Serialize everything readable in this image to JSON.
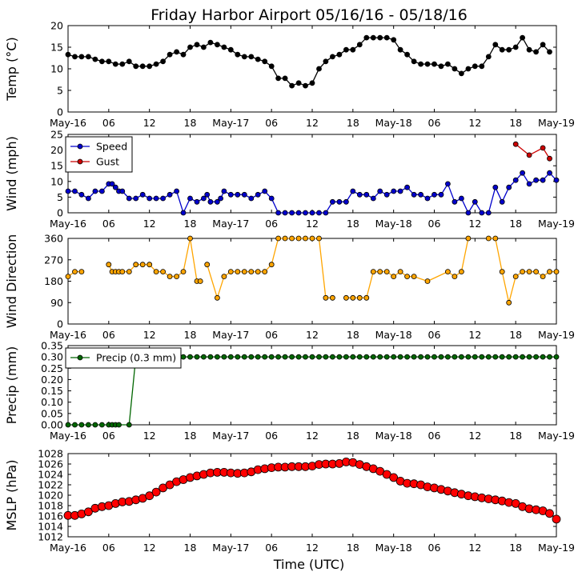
{
  "title": "Friday Harbor Airport 05/16/16 - 05/18/16",
  "x_axis_label": "Time (UTC)",
  "chart_data": {
    "type": "line",
    "x_unit": "hours since 2016-05-16 00:00 UTC",
    "x_range": [
      0,
      72
    ],
    "x_ticks": [
      0,
      6,
      12,
      18,
      24,
      30,
      36,
      42,
      48,
      54,
      60,
      66,
      72
    ],
    "x_tick_labels": [
      "May-16",
      "06",
      "12",
      "18",
      "May-17",
      "06",
      "12",
      "18",
      "May-18",
      "06",
      "12",
      "18",
      "May-19"
    ],
    "panels": [
      {
        "name": "temperature",
        "ylabel": "Temp (°C)",
        "ylim": [
          0,
          20
        ],
        "yticks": [
          0,
          5,
          10,
          15,
          20
        ],
        "legend": null,
        "series": [
          {
            "name": "Temp",
            "color": "#000000",
            "marker": "circle",
            "line": true,
            "x": [
              0,
              1,
              2,
              3,
              4,
              5,
              6,
              7,
              8,
              9,
              10,
              11,
              12,
              13,
              14,
              15,
              16,
              17,
              18,
              19,
              20,
              21,
              22,
              23,
              24,
              25,
              26,
              27,
              28,
              29,
              30,
              31,
              32,
              33,
              34,
              35,
              36,
              37,
              38,
              39,
              40,
              41,
              42,
              43,
              44,
              45,
              46,
              47,
              48,
              49,
              50,
              51,
              52,
              53,
              54,
              55,
              56,
              57,
              58,
              59,
              60,
              61,
              62,
              63,
              64,
              65,
              66,
              67,
              68,
              69,
              70,
              71,
              72
            ],
            "y": [
              13.3,
              12.8,
              12.8,
              12.8,
              12.2,
              11.7,
              11.7,
              11.1,
              11.1,
              11.7,
              10.6,
              10.6,
              10.6,
              11.1,
              11.7,
              13.3,
              13.9,
              13.3,
              15.0,
              15.6,
              15.0,
              16.1,
              15.6,
              15.0,
              14.4,
              13.3,
              12.8,
              12.8,
              12.2,
              11.7,
              10.6,
              7.8,
              7.8,
              6.1,
              6.7,
              6.1,
              6.7,
              10.0,
              11.7,
              12.8,
              13.3,
              14.4,
              14.4,
              15.6,
              17.2,
              17.2,
              17.2,
              17.2,
              16.7,
              14.4,
              13.3,
              11.7,
              11.1,
              11.1,
              11.1,
              10.6,
              11.1,
              10.0,
              8.9,
              10.0,
              10.6,
              10.6,
              12.8,
              15.6,
              14.4,
              14.4,
              15.0,
              17.2,
              14.4,
              13.9,
              15.6,
              13.9,
              null
            ]
          }
        ]
      },
      {
        "name": "wind",
        "ylabel": "Wind (mph)",
        "ylim": [
          0,
          25
        ],
        "yticks": [
          0,
          5,
          10,
          15,
          20,
          25
        ],
        "legend": "top-left",
        "series": [
          {
            "name": "Speed",
            "color": "#0000cc",
            "marker": "circle",
            "line": true,
            "x": [
              0,
              1,
              2,
              3,
              4,
              5,
              6,
              6.5,
              7,
              7.5,
              8,
              9,
              10,
              11,
              12,
              13,
              14,
              15,
              16,
              17,
              18,
              19,
              20,
              20.5,
              21,
              22,
              22.5,
              23,
              24,
              25,
              26,
              27,
              28,
              29,
              30,
              31,
              32,
              33,
              34,
              35,
              36,
              37,
              38,
              39,
              40,
              41,
              42,
              43,
              44,
              45,
              46,
              47,
              48,
              49,
              50,
              51,
              52,
              53,
              54,
              55,
              56,
              57,
              58,
              59,
              60,
              61,
              62,
              63,
              64,
              65,
              66,
              67,
              68,
              69,
              70,
              71,
              72
            ],
            "y": [
              6.9,
              6.9,
              5.8,
              4.6,
              6.9,
              6.9,
              9.2,
              9.2,
              8.1,
              6.9,
              6.9,
              4.6,
              4.6,
              5.8,
              4.6,
              4.6,
              4.6,
              5.8,
              6.9,
              0.0,
              4.6,
              3.5,
              4.6,
              5.8,
              3.5,
              3.5,
              4.6,
              6.9,
              5.8,
              5.8,
              5.8,
              4.6,
              5.8,
              6.9,
              4.6,
              0.0,
              0.0,
              0.0,
              0.0,
              0.0,
              0.0,
              0.0,
              0.0,
              3.5,
              3.5,
              3.5,
              6.9,
              5.8,
              5.8,
              4.6,
              6.9,
              5.8,
              6.9,
              6.9,
              8.1,
              5.8,
              5.8,
              4.6,
              5.8,
              5.8,
              9.2,
              3.5,
              4.6,
              0.0,
              3.5,
              0.0,
              0.0,
              8.1,
              3.5,
              8.1,
              10.4,
              12.7,
              9.2,
              10.4,
              10.4,
              12.7,
              10.4
            ]
          },
          {
            "name": "Gust",
            "color": "#cc0000",
            "marker": "circle",
            "line": true,
            "x": [
              66,
              68,
              70,
              71
            ],
            "y": [
              21.9,
              18.4,
              20.7,
              17.3
            ]
          }
        ]
      },
      {
        "name": "wind_direction",
        "ylabel": "Wind Direction",
        "ylim": [
          0,
          360
        ],
        "yticks": [
          0,
          90,
          180,
          270,
          360
        ],
        "legend": null,
        "series": [
          {
            "name": "Direction",
            "color": "#ffa500",
            "marker": "circle",
            "line": true,
            "x": [
              0,
              1,
              2,
              5,
              6,
              6.5,
              7,
              7.5,
              8,
              9,
              10,
              11,
              12,
              13,
              14,
              15,
              16,
              17,
              18,
              19,
              19.5,
              20,
              20.5,
              22,
              23,
              24,
              25,
              26,
              27,
              28,
              29,
              30,
              31,
              32,
              33,
              34,
              35,
              36,
              37,
              38,
              39,
              40,
              41,
              42,
              43,
              44,
              45,
              46,
              47,
              48,
              49,
              50,
              51,
              53,
              56,
              57,
              58,
              59,
              60,
              62,
              63,
              64,
              65,
              66,
              67,
              68,
              69,
              70,
              71,
              72
            ],
            "y": [
              200,
              220,
              220,
              null,
              250,
              220,
              220,
              220,
              220,
              220,
              250,
              250,
              250,
              220,
              220,
              200,
              200,
              220,
              360,
              180,
              180,
              null,
              250,
              110,
              200,
              220,
              220,
              220,
              220,
              220,
              220,
              250,
              360,
              360,
              360,
              360,
              360,
              360,
              360,
              110,
              110,
              null,
              110,
              110,
              110,
              110,
              220,
              220,
              220,
              200,
              220,
              200,
              200,
              180,
              220,
              200,
              220,
              360,
              null,
              360,
              360,
              220,
              90,
              200,
              220,
              220,
              220,
              200,
              220,
              220
            ]
          }
        ]
      },
      {
        "name": "precipitation",
        "ylabel": "Precip (mm)",
        "ylim": [
          0,
          0.35
        ],
        "yticks": [
          0.0,
          0.05,
          0.1,
          0.15,
          0.2,
          0.25,
          0.3,
          0.35
        ],
        "legend": "top-left",
        "series": [
          {
            "name": "Precip (0.3 mm)",
            "color": "#006600",
            "marker": "circle",
            "line": true,
            "x": [
              0,
              1,
              2,
              3,
              4,
              5,
              6,
              6.5,
              7,
              7.5,
              9,
              10,
              11,
              12,
              13,
              14,
              15,
              16,
              17,
              18,
              19,
              20,
              21,
              22,
              23,
              24,
              25,
              26,
              27,
              28,
              29,
              30,
              31,
              32,
              33,
              34,
              35,
              36,
              37,
              38,
              39,
              40,
              41,
              42,
              43,
              44,
              45,
              46,
              47,
              48,
              49,
              50,
              51,
              52,
              53,
              54,
              55,
              56,
              57,
              58,
              59,
              60,
              61,
              62,
              63,
              64,
              65,
              66,
              67,
              68,
              69,
              70,
              71,
              72
            ],
            "y": [
              0,
              0,
              0,
              0,
              0,
              0,
              0,
              0,
              0,
              0,
              0,
              0.3,
              0.3,
              0.3,
              0.3,
              0.3,
              0.3,
              0.3,
              0.3,
              0.3,
              0.3,
              0.3,
              0.3,
              0.3,
              0.3,
              0.3,
              0.3,
              0.3,
              0.3,
              0.3,
              0.3,
              0.3,
              0.3,
              0.3,
              0.3,
              0.3,
              0.3,
              0.3,
              0.3,
              0.3,
              0.3,
              0.3,
              0.3,
              0.3,
              0.3,
              0.3,
              0.3,
              0.3,
              0.3,
              0.3,
              0.3,
              0.3,
              0.3,
              0.3,
              0.3,
              0.3,
              0.3,
              0.3,
              0.3,
              0.3,
              0.3,
              0.3,
              0.3,
              0.3,
              0.3,
              0.3,
              0.3,
              0.3,
              0.3,
              0.3,
              0.3,
              0.3,
              0.3,
              0.3
            ]
          }
        ]
      },
      {
        "name": "pressure",
        "ylabel": "MSLP (hPa)",
        "ylim": [
          1012,
          1028
        ],
        "yticks": [
          1012,
          1014,
          1016,
          1018,
          1020,
          1022,
          1024,
          1026,
          1028
        ],
        "legend": null,
        "series": [
          {
            "name": "MSLP",
            "color": "#ff0000",
            "marker": "circle-large",
            "line": true,
            "x": [
              0,
              1,
              2,
              3,
              4,
              5,
              6,
              7,
              8,
              9,
              10,
              11,
              12,
              13,
              14,
              15,
              16,
              17,
              18,
              19,
              20,
              21,
              22,
              23,
              24,
              25,
              26,
              27,
              28,
              29,
              30,
              31,
              32,
              33,
              34,
              35,
              36,
              37,
              38,
              39,
              40,
              41,
              42,
              43,
              44,
              45,
              46,
              47,
              48,
              49,
              50,
              51,
              52,
              53,
              54,
              55,
              56,
              57,
              58,
              59,
              60,
              61,
              62,
              63,
              64,
              65,
              66,
              67,
              68,
              69,
              70,
              71,
              72
            ],
            "y": [
              1016.1,
              1016.1,
              1016.4,
              1016.8,
              1017.5,
              1017.8,
              1018.0,
              1018.4,
              1018.7,
              1018.8,
              1019.1,
              1019.4,
              1019.9,
              1020.6,
              1021.4,
              1022.0,
              1022.6,
              1023.0,
              1023.4,
              1023.7,
              1024.0,
              1024.3,
              1024.4,
              1024.4,
              1024.3,
              1024.2,
              1024.3,
              1024.5,
              1024.9,
              1025.1,
              1025.3,
              1025.4,
              1025.4,
              1025.5,
              1025.5,
              1025.5,
              1025.6,
              1025.9,
              1026.0,
              1026.0,
              1026.1,
              1026.4,
              1026.3,
              1025.9,
              1025.5,
              1025.1,
              1024.6,
              1024.0,
              1023.4,
              1022.7,
              1022.3,
              1022.2,
              1022.0,
              1021.6,
              1021.4,
              1021.1,
              1020.8,
              1020.5,
              1020.2,
              1019.9,
              1019.7,
              1019.5,
              1019.3,
              1019.1,
              1018.9,
              1018.6,
              1018.4,
              1017.8,
              1017.4,
              1017.2,
              1017.0,
              1016.5,
              1015.4
            ]
          }
        ]
      }
    ]
  }
}
